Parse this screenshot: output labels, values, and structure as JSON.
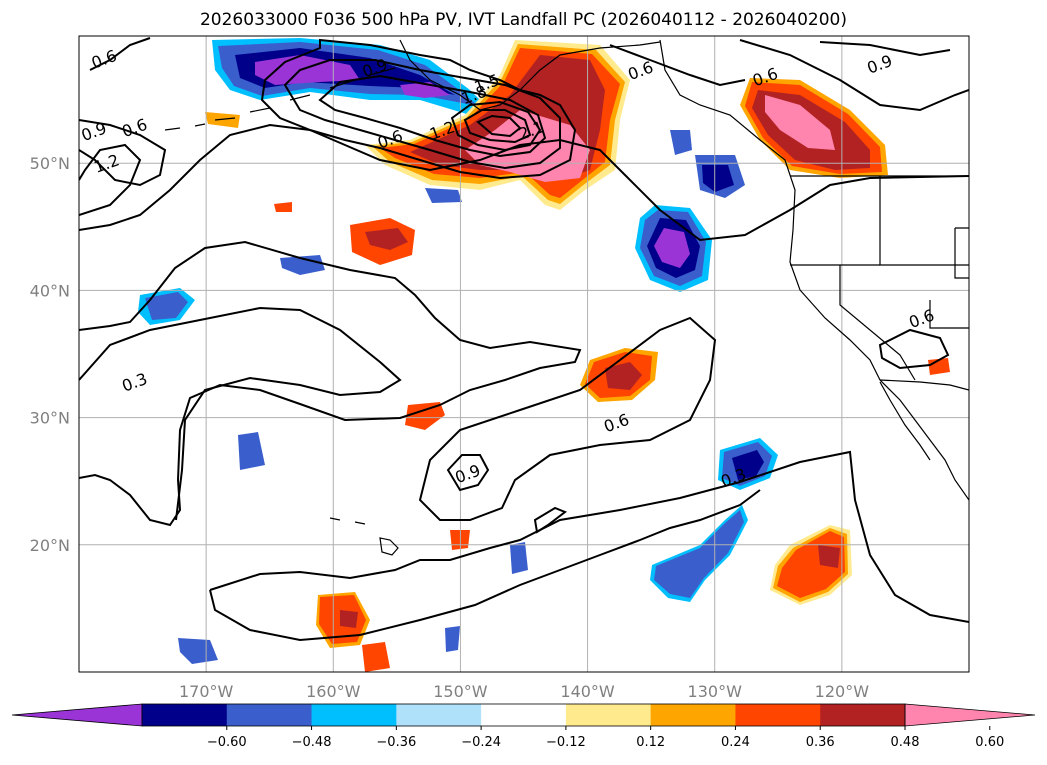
{
  "title": "2026033000 F036 500 hPa PV, IVT Landfall PC (2026040112 - 2026040200)",
  "map": {
    "lon_range": [
      -180,
      -110
    ],
    "lat_range": [
      10,
      60
    ],
    "lon_ticks": [
      {
        "value": -170,
        "label": "170°W"
      },
      {
        "value": -160,
        "label": "160°W"
      },
      {
        "value": -150,
        "label": "150°W"
      },
      {
        "value": -140,
        "label": "140°W"
      },
      {
        "value": -130,
        "label": "130°W"
      },
      {
        "value": -120,
        "label": "120°W"
      }
    ],
    "lat_ticks": [
      {
        "value": 20,
        "label": "20°N"
      },
      {
        "value": 30,
        "label": "30°N"
      },
      {
        "value": 40,
        "label": "40°N"
      },
      {
        "value": 50,
        "label": "50°N"
      }
    ],
    "grid": true,
    "contour_labels": [
      {
        "text": "0.6",
        "lon": -178.0,
        "lat": 58.1
      },
      {
        "text": "0.9",
        "lon": -178.8,
        "lat": 52.4
      },
      {
        "text": "0.6",
        "lon": -175.6,
        "lat": 52.7
      },
      {
        "text": "1.2",
        "lon": -177.8,
        "lat": 49.9
      },
      {
        "text": "0.3",
        "lon": -175.6,
        "lat": 32.7
      },
      {
        "text": "0.6",
        "lon": -155.5,
        "lat": 51.8
      },
      {
        "text": "1.2",
        "lon": -151.4,
        "lat": 52.5
      },
      {
        "text": "0.9",
        "lon": -156.7,
        "lat": 57.4
      },
      {
        "text": "1.5",
        "lon": -147.9,
        "lat": 56.2
      },
      {
        "text": "1.8",
        "lon": -148.9,
        "lat": 55.3
      },
      {
        "text": "2.1",
        "lon": -144.4,
        "lat": 52.5
      },
      {
        "text": "0.6",
        "lon": -135.8,
        "lat": 57.2
      },
      {
        "text": "0.6",
        "lon": -126.0,
        "lat": 56.7
      },
      {
        "text": "0.9",
        "lon": -117.0,
        "lat": 57.7
      },
      {
        "text": "0.6",
        "lon": -113.7,
        "lat": 37.7
      },
      {
        "text": "0.6",
        "lon": -137.7,
        "lat": 29.5
      },
      {
        "text": "0.9",
        "lon": -149.4,
        "lat": 25.5
      },
      {
        "text": "0.3",
        "lon": -128.5,
        "lat": 25.2
      }
    ]
  },
  "colorbar": {
    "extend": "both",
    "levels": [
      -0.6,
      -0.48,
      -0.36,
      -0.24,
      -0.12,
      0.12,
      0.24,
      0.36,
      0.48,
      0.6
    ],
    "labels": [
      "−0.60",
      "−0.48",
      "−0.36",
      "−0.24",
      "−0.12",
      "0.12",
      "0.24",
      "0.36",
      "0.48",
      "0.60"
    ],
    "colors": [
      "#9a34d6",
      "#00008b",
      "#3a5fcd",
      "#00bfff",
      "#afe1fa",
      "#ffffff",
      "#ffea8e",
      "#ffa500",
      "#ff4500",
      "#b22222",
      "#ff85ae"
    ]
  }
}
